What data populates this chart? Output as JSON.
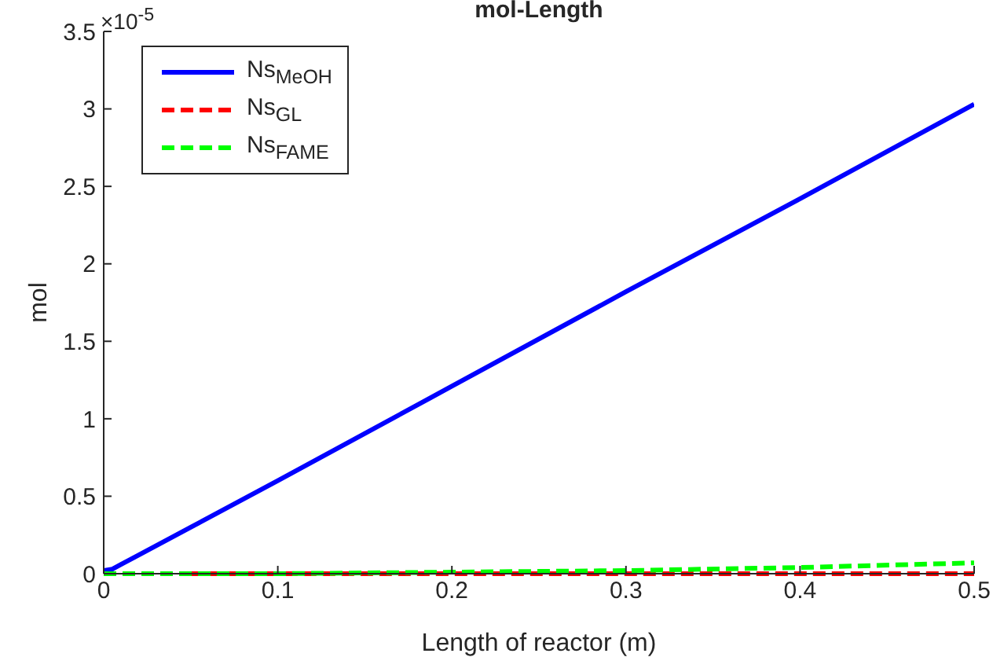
{
  "chart_data": {
    "type": "line",
    "title": "mol-Length",
    "xlabel": "Length of reactor (m)",
    "ylabel": "mol",
    "annotations": [
      "×10$^{-5}$"
    ],
    "x": [
      0,
      0.005,
      0.01,
      0.02,
      0.05,
      0.1,
      0.2,
      0.3,
      0.4,
      0.5
    ],
    "series": [
      {
        "name": "Ns$_{MeOH}$",
        "color": "#0000ff",
        "line_style": "solid",
        "values": [
          0.02,
          0.03,
          0.06,
          0.12,
          0.3,
          0.6,
          1.21,
          1.82,
          2.42,
          3.03
        ]
      },
      {
        "name": "Ns$_{GL}$",
        "color": "#ff0000",
        "line_style": "dashed",
        "values": [
          null,
          null,
          null,
          null,
          0,
          0,
          0,
          0,
          0,
          0
        ]
      },
      {
        "name": "Ns$_{FAME}$",
        "color": "#00ff00",
        "line_style": "dashed",
        "values": [
          0,
          0,
          0,
          0,
          0,
          0,
          0.01,
          0.02,
          0.04,
          0.07
        ]
      }
    ],
    "xlim": [
      0,
      0.5
    ],
    "xticks": [
      0,
      0.1,
      0.2,
      0.3,
      0.4,
      0.5
    ],
    "ylim": [
      0,
      3.5
    ],
    "yticks": [
      0,
      0.5,
      1,
      1.5,
      2,
      2.5,
      3,
      3.5
    ],
    "grid": false,
    "legend": "top left",
    "marker": "none"
  }
}
